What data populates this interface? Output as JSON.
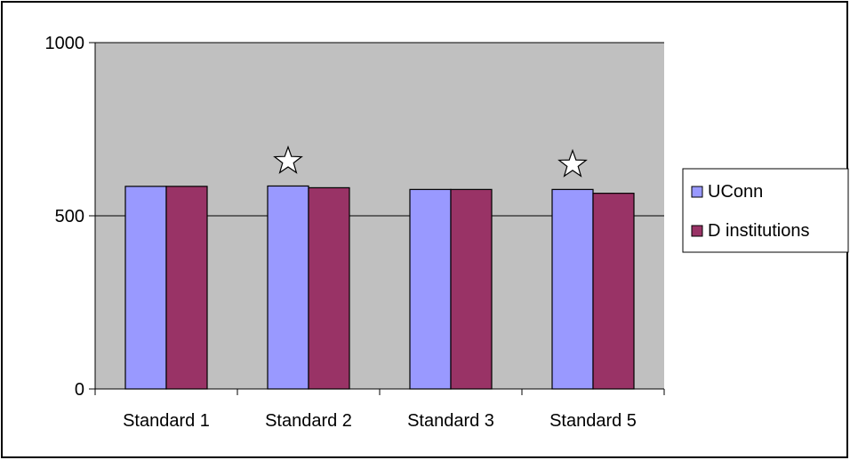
{
  "chart_data": {
    "type": "bar",
    "categories": [
      "Standard 1",
      "Standard 2",
      "Standard 3",
      "Standard 5"
    ],
    "series": [
      {
        "name": "UConn",
        "values": [
          585,
          586,
          576,
          576
        ]
      },
      {
        "name": "D institutions",
        "values": [
          585,
          581,
          576,
          565
        ]
      }
    ],
    "ylim": [
      0,
      1000
    ],
    "yticks": [
      "0",
      "500",
      "1000"
    ],
    "grid": true,
    "legend_position": "right",
    "annotations": [
      {
        "type": "star",
        "category": "Standard 2",
        "symbol": "☆"
      },
      {
        "type": "star",
        "category": "Standard 5",
        "symbol": "☆"
      }
    ],
    "colors": {
      "UConn": "#9999ff",
      "D institutions": "#993366",
      "plot_background": "#c0c0c0",
      "gridline": "#000000"
    }
  }
}
